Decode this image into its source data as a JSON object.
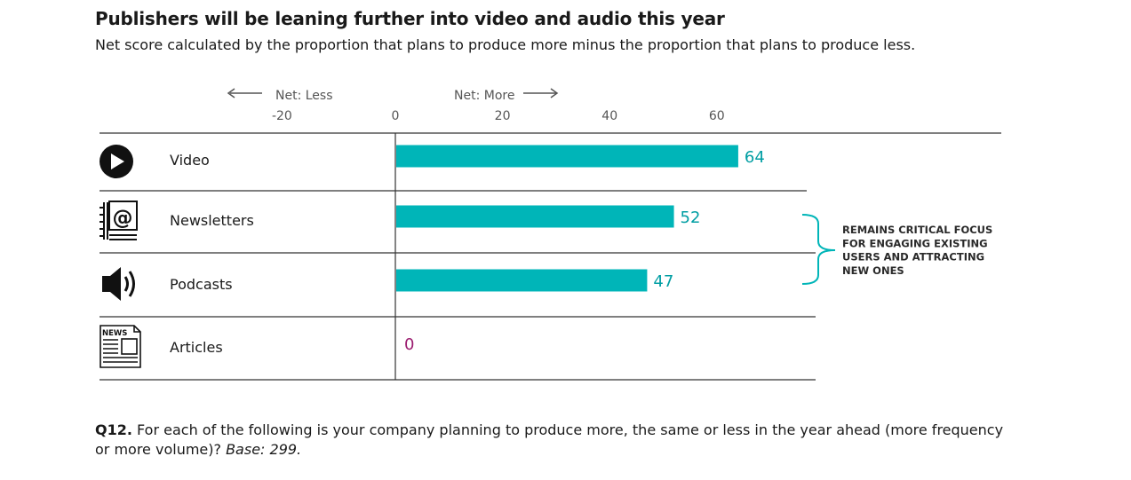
{
  "title": "Publishers will be leaning further into video and audio this year",
  "subtitle": "Net score calculated by the proportion that plans to produce more minus the proportion that plans to produce less.",
  "chart_data": {
    "type": "bar",
    "orientation": "horizontal",
    "categories": [
      "Video",
      "Newsletters",
      "Podcasts",
      "Articles"
    ],
    "icons": [
      "play-icon",
      "newsletter-icon",
      "speaker-icon",
      "news-icon"
    ],
    "values": [
      64,
      52,
      47,
      0
    ],
    "value_labels": [
      "64",
      "52",
      "47",
      "0"
    ],
    "xlim": [
      -20,
      60
    ],
    "ticks": [
      -20,
      0,
      20,
      40,
      60
    ],
    "tick_labels": [
      "-20",
      "0",
      "20",
      "40",
      "60"
    ],
    "direction_labels": {
      "less": "Net: Less",
      "more": "Net: More"
    },
    "colors": {
      "bar": "#00b5b8",
      "value": "#009ea3",
      "zero_value": "#9b1c6f",
      "text": "#1a1a1a",
      "axis": "#333333",
      "muted": "#555555"
    },
    "annotation": {
      "text_lines": [
        "REMAINS CRITICAL FOCUS",
        "FOR ENGAGING EXISTING",
        "USERS AND ATTRACTING",
        "NEW ONES"
      ],
      "applies_to": [
        "Newsletters",
        "Podcasts"
      ]
    }
  },
  "footnote": {
    "label": "Q12.",
    "text": " For each of the following is your company planning to produce more, the same or less in the year ahead (more frequency or more volume)? ",
    "base": "Base: 299."
  }
}
